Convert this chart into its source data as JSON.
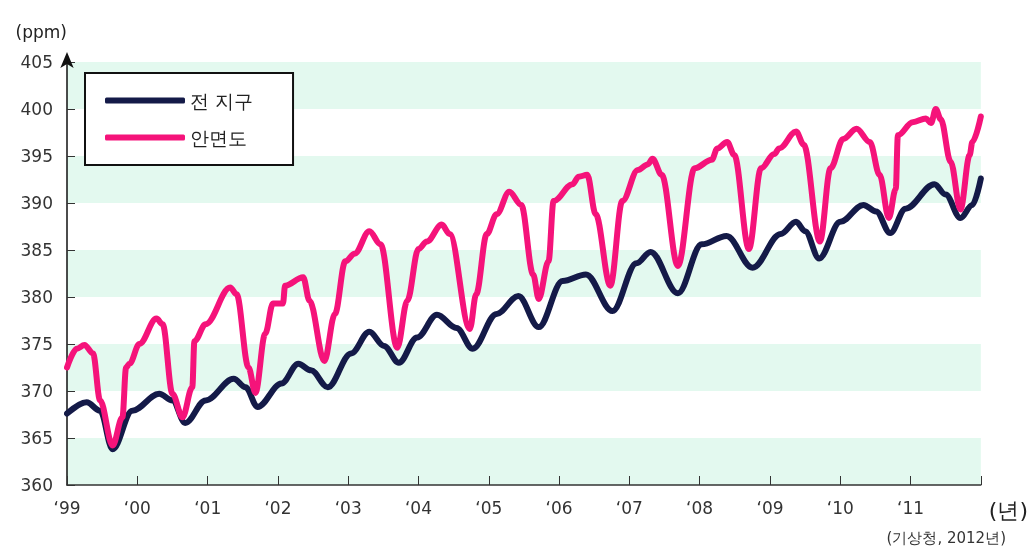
{
  "chart_data": {
    "type": "line",
    "ylabel": "(ppm)",
    "xlabel": "(년)",
    "annotations": [
      "(기상청, 2012년)"
    ],
    "xlim": [
      "1999-01-01",
      "2012-01-01"
    ],
    "xticks": [
      {
        "value": "1999",
        "label": "‘99"
      },
      {
        "value": "2000",
        "label": "‘00"
      },
      {
        "value": "2001",
        "label": "‘01"
      },
      {
        "value": "2002",
        "label": "‘02"
      },
      {
        "value": "2003",
        "label": "‘03"
      },
      {
        "value": "2004",
        "label": "‘04"
      },
      {
        "value": "2005",
        "label": "‘05"
      },
      {
        "value": "2006",
        "label": "‘06"
      },
      {
        "value": "2007",
        "label": "‘07"
      },
      {
        "value": "2008",
        "label": "‘08"
      },
      {
        "value": "2009",
        "label": "‘09"
      },
      {
        "value": "2010",
        "label": "‘10"
      },
      {
        "value": "2011",
        "label": "‘11"
      },
      {
        "value": "2012",
        "label": null
      }
    ],
    "ylim": [
      360,
      405
    ],
    "yticks": [
      360,
      365,
      370,
      375,
      380,
      385,
      390,
      395,
      400,
      405
    ],
    "grid": false,
    "legend": "top left",
    "marker": "none",
    "line_style": "solid",
    "bands": [
      {
        "axis": "y",
        "from": 360,
        "to": 365,
        "color": "#e3f9ef"
      },
      {
        "axis": "y",
        "from": 370,
        "to": 375,
        "color": "#e3f9ef"
      },
      {
        "axis": "y",
        "from": 380,
        "to": 385,
        "color": "#e3f9ef"
      },
      {
        "axis": "y",
        "from": 390,
        "to": 395,
        "color": "#e3f9ef"
      },
      {
        "axis": "y",
        "from": 400,
        "to": 405,
        "color": "#e3f9ef"
      }
    ],
    "series": [
      {
        "name": "전 지구",
        "color": "#141a48",
        "x": [
          "1999-01-01",
          "1999-04-13",
          "1999-06-22",
          "1999-08-26",
          "1999-12-06",
          "2000-04-24",
          "2000-07-02",
          "2000-09-06",
          "2000-12-21",
          "2001-05-16",
          "2001-07-17",
          "2001-09-17",
          "2002-01-19",
          "2002-04-17",
          "2002-06-22",
          "2002-09-17",
          "2003-01-16",
          "2003-04-21",
          "2003-07-06",
          "2003-09-21",
          "2003-12-25",
          "2004-04-06",
          "2004-07-17",
          "2004-10-09",
          "2005-02-10",
          "2005-06-03",
          "2005-09-17",
          "2006-01-19",
          "2006-05-20",
          "2006-10-05",
          "2007-02-07",
          "2007-04-21",
          "2007-09-10",
          "2008-01-12",
          "2008-05-20",
          "2008-10-02",
          "2009-02-25",
          "2009-05-16",
          "2009-07-02",
          "2009-09-13",
          "2010-01-01",
          "2010-05-01",
          "2010-07-06",
          "2010-09-17",
          "2010-12-06",
          "2011-05-05",
          "2011-07-02",
          "2011-09-17",
          "2011-11-18",
          "2012-01-01"
        ],
        "values": [
          367.6,
          368.8,
          367.9,
          363.8,
          367.9,
          369.7,
          369.0,
          366.6,
          369.0,
          371.3,
          370.4,
          368.3,
          370.8,
          372.9,
          372.2,
          370.4,
          374.0,
          376.3,
          374.8,
          373.0,
          375.7,
          378.1,
          376.7,
          374.5,
          378.2,
          380.1,
          376.8,
          381.7,
          382.4,
          378.5,
          383.6,
          384.8,
          380.4,
          385.6,
          386.5,
          383.1,
          386.7,
          388.0,
          387.0,
          384.1,
          388.0,
          389.8,
          389.1,
          386.8,
          389.4,
          392.0,
          390.9,
          388.4,
          389.8,
          392.6
        ]
      },
      {
        "name": "안면도",
        "color": "#f5137a",
        "x": [
          "1999-01-01",
          "1999-02-21",
          "1999-04-02",
          "1999-05-16",
          "1999-06-22",
          "1999-08-26",
          "1999-10-16",
          "1999-11-04",
          "1999-11-22",
          "2000-01-12",
          "2000-04-10",
          "2000-05-12",
          "2000-07-02",
          "2000-08-23",
          "2000-10-13",
          "2000-10-24",
          "2000-12-21",
          "2001-04-28",
          "2001-05-31",
          "2001-08-01",
          "2001-09-06",
          "2001-10-27",
          "2001-12-06",
          "2002-01-27",
          "2002-02-07",
          "2002-05-12",
          "2002-06-14",
          "2002-08-30",
          "2002-10-24",
          "2002-12-17",
          "2003-02-03",
          "2003-04-21",
          "2003-06-18",
          "2003-09-13",
          "2003-11-04",
          "2004-01-01",
          "2004-02-14",
          "2004-05-01",
          "2004-06-11",
          "2004-09-24",
          "2004-10-27",
          "2004-12-21",
          "2005-02-10",
          "2005-04-17",
          "2005-06-18",
          "2005-08-19",
          "2005-09-17",
          "2005-11-07",
          "2005-12-03",
          "2006-03-11",
          "2006-04-13",
          "2006-05-27",
          "2006-07-10",
          "2006-09-24",
          "2006-11-25",
          "2007-02-14",
          "2007-04-06",
          "2007-05-01",
          "2007-06-18",
          "2007-09-10",
          "2007-12-06",
          "2008-03-04",
          "2008-04-02",
          "2008-05-23",
          "2008-06-29",
          "2008-09-13",
          "2008-11-15",
          "2009-01-23",
          "2009-02-17",
          "2009-05-16",
          "2009-06-25",
          "2009-09-17",
          "2009-11-11",
          "2010-01-16",
          "2010-03-26",
          "2010-06-03",
          "2010-07-24",
          "2010-09-10",
          "2010-10-16",
          "2010-10-27",
          "2011-01-12",
          "2011-03-22",
          "2011-04-17",
          "2011-05-12",
          "2011-06-07",
          "2011-07-28",
          "2011-09-17",
          "2011-11-04",
          "2011-11-18",
          "2012-01-01"
        ],
        "values": [
          372.5,
          374.5,
          374.9,
          374.0,
          369.0,
          364.2,
          367.2,
          372.5,
          372.9,
          375.0,
          377.7,
          377.1,
          369.7,
          367.2,
          370.4,
          375.3,
          377.1,
          381.0,
          380.3,
          372.5,
          369.8,
          376.1,
          379.3,
          379.3,
          381.2,
          382.1,
          379.6,
          373.2,
          378.2,
          383.8,
          384.6,
          387.0,
          385.6,
          374.6,
          379.6,
          385.1,
          385.9,
          387.7,
          386.7,
          376.6,
          380.3,
          386.7,
          388.8,
          391.2,
          389.8,
          382.4,
          379.8,
          383.8,
          390.2,
          392.0,
          392.8,
          393.0,
          388.8,
          381.2,
          390.2,
          393.5,
          394.1,
          394.7,
          393.0,
          383.3,
          393.7,
          394.6,
          395.8,
          396.5,
          395.1,
          385.1,
          393.7,
          395.2,
          395.8,
          397.6,
          396.2,
          385.9,
          393.7,
          396.8,
          397.9,
          396.5,
          393.0,
          388.4,
          391.5,
          397.2,
          398.6,
          399.0,
          398.5,
          400.0,
          398.9,
          394.4,
          389.3,
          395.1,
          396.5,
          399.2
        ]
      }
    ]
  }
}
